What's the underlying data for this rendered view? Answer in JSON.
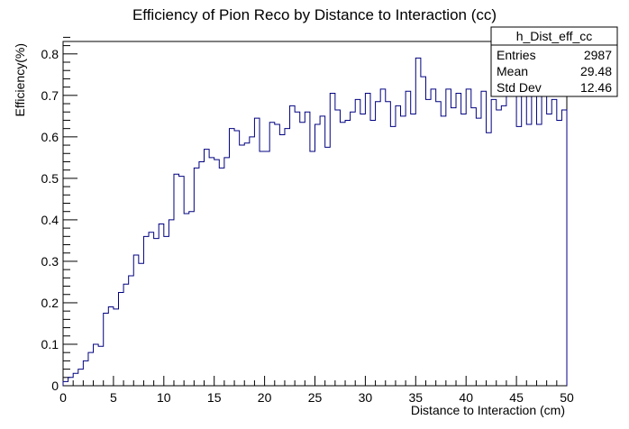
{
  "chart_data": {
    "type": "histogram",
    "title": "Efficiency of Pion Reco by Distance to Interaction (cc)",
    "xlabel": "Distance to Interaction (cm)",
    "ylabel": "Efficiency(%)",
    "xlim": [
      0,
      50
    ],
    "ylim": [
      0,
      0.83
    ],
    "bin_width": 0.5,
    "x_ticks": [
      0,
      5,
      10,
      15,
      20,
      25,
      30,
      35,
      40,
      45,
      50
    ],
    "x_tick_labels": [
      "0",
      "5",
      "10",
      "15",
      "20",
      "25",
      "30",
      "35",
      "40",
      "45",
      "50"
    ],
    "y_ticks": [
      0,
      0.1,
      0.2,
      0.3,
      0.4,
      0.5,
      0.6,
      0.7,
      0.8
    ],
    "y_tick_labels": [
      "0",
      "0.1",
      "0.2",
      "0.3",
      "0.4",
      "0.5",
      "0.6",
      "0.7",
      "0.8"
    ],
    "line_color": "#000080",
    "grid": false,
    "values": [
      0.01,
      0.02,
      0.03,
      0.04,
      0.06,
      0.08,
      0.1,
      0.095,
      0.175,
      0.19,
      0.185,
      0.225,
      0.245,
      0.265,
      0.315,
      0.295,
      0.36,
      0.37,
      0.355,
      0.39,
      0.36,
      0.4,
      0.51,
      0.505,
      0.415,
      0.42,
      0.525,
      0.54,
      0.57,
      0.55,
      0.545,
      0.525,
      0.55,
      0.62,
      0.615,
      0.58,
      0.585,
      0.6,
      0.645,
      0.565,
      0.565,
      0.635,
      0.63,
      0.605,
      0.62,
      0.675,
      0.66,
      0.635,
      0.66,
      0.565,
      0.63,
      0.65,
      0.575,
      0.705,
      0.665,
      0.635,
      0.64,
      0.66,
      0.69,
      0.655,
      0.705,
      0.64,
      0.685,
      0.715,
      0.685,
      0.625,
      0.675,
      0.65,
      0.71,
      0.655,
      0.79,
      0.745,
      0.69,
      0.715,
      0.685,
      0.65,
      0.715,
      0.67,
      0.705,
      0.655,
      0.715,
      0.67,
      0.645,
      0.71,
      0.61,
      0.69,
      0.665,
      0.675,
      0.725,
      0.72,
      0.625,
      0.705,
      0.63,
      0.715,
      0.63,
      0.715,
      0.655,
      0.69,
      0.64,
      0.665
    ],
    "stats_box": {
      "name": "h_Dist_eff_cc",
      "rows": [
        {
          "label": "Entries",
          "value": "2987"
        },
        {
          "label": "Mean",
          "value": "29.48"
        },
        {
          "label": "Std Dev",
          "value": "12.46"
        }
      ]
    }
  }
}
